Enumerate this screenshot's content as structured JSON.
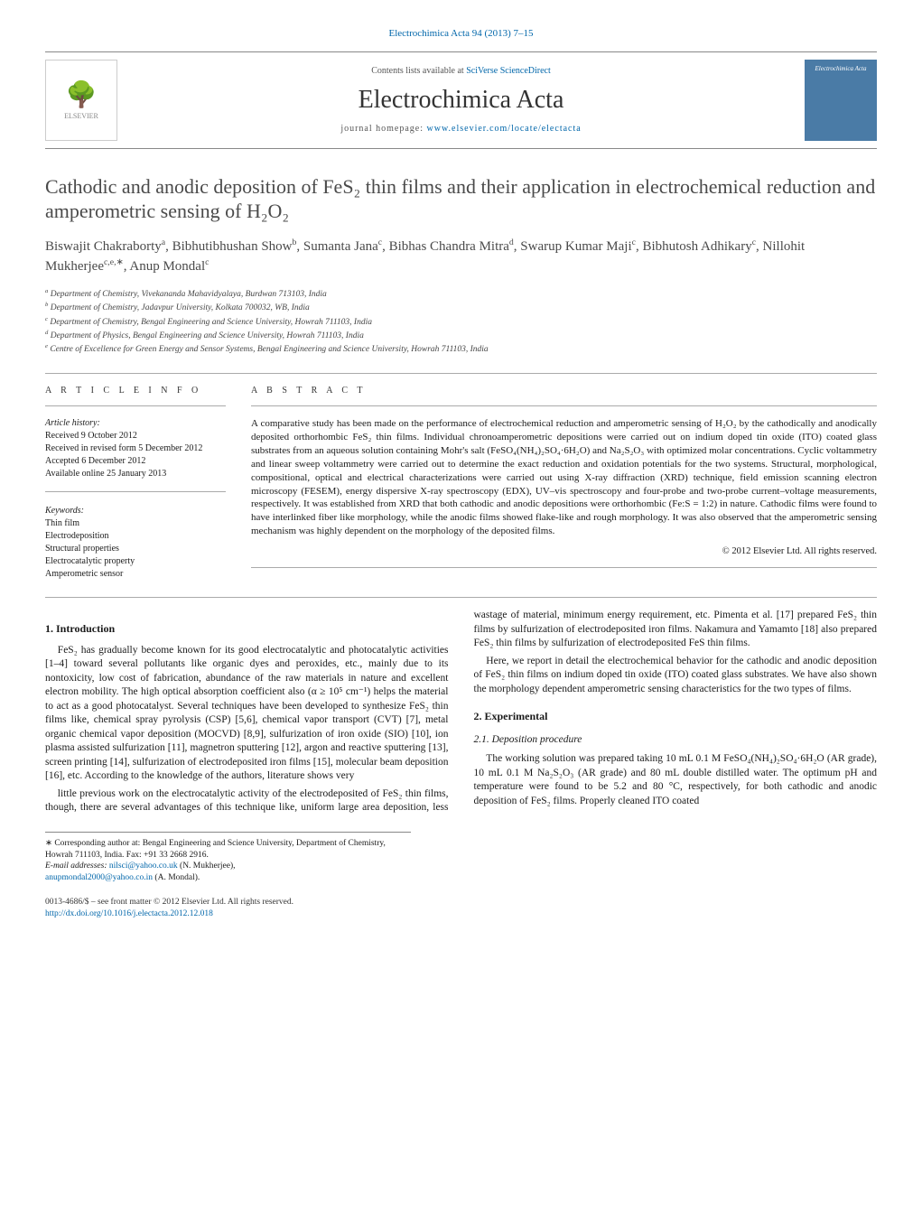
{
  "top_ref": "Electrochimica Acta 94 (2013) 7–15",
  "header": {
    "contents_prefix": "Contents lists available at ",
    "contents_link": "SciVerse ScienceDirect",
    "journal": "Electrochimica Acta",
    "homepage_prefix": "journal homepage: ",
    "homepage_link": "www.elsevier.com/locate/electacta",
    "publisher_logo": "ELSEVIER",
    "journal_logo_text": "Electrochimica Acta"
  },
  "title": "Cathodic and anodic deposition of FeS₂ thin films and their application in electrochemical reduction and amperometric sensing of H₂O₂",
  "authors_html": "Biswajit Chakraborty<sup>a</sup>, Bibhutibhushan Show<sup>b</sup>, Sumanta Jana<sup>c</sup>, Bibhas Chandra Mitra<sup>d</sup>, Swarup Kumar Maji<sup>c</sup>, Bibhutosh Adhikary<sup>c</sup>, Nillohit Mukherjee<sup>c,e,∗</sup>, Anup Mondal<sup>c</sup>",
  "affiliations": [
    "a Department of Chemistry, Vivekananda Mahavidyalaya, Burdwan 713103, India",
    "b Department of Chemistry, Jadavpur University, Kolkata 700032, WB, India",
    "c Department of Chemistry, Bengal Engineering and Science University, Howrah 711103, India",
    "d Department of Physics, Bengal Engineering and Science University, Howrah 711103, India",
    "e Centre of Excellence for Green Energy and Sensor Systems, Bengal Engineering and Science University, Howrah 711103, India"
  ],
  "info": {
    "heading": "a r t i c l e   i n f o",
    "history_label": "Article history:",
    "history": [
      "Received 9 October 2012",
      "Received in revised form 5 December 2012",
      "Accepted 6 December 2012",
      "Available online 25 January 2013"
    ],
    "keywords_label": "Keywords:",
    "keywords": [
      "Thin film",
      "Electrodeposition",
      "Structural properties",
      "Electrocatalytic property",
      "Amperometric sensor"
    ]
  },
  "abstract": {
    "heading": "a b s t r a c t",
    "text": "A comparative study has been made on the performance of electrochemical reduction and amperometric sensing of H₂O₂ by the cathodically and anodically deposited orthorhombic FeS₂ thin films. Individual chronoamperometric depositions were carried out on indium doped tin oxide (ITO) coated glass substrates from an aqueous solution containing Mohr's salt (FeSO₄(NH₄)₂SO₄·6H₂O) and Na₂S₂O₃ with optimized molar concentrations. Cyclic voltammetry and linear sweep voltammetry were carried out to determine the exact reduction and oxidation potentials for the two systems. Structural, morphological, compositional, optical and electrical characterizations were carried out using X-ray diffraction (XRD) technique, field emission scanning electron microscopy (FESEM), energy dispersive X-ray spectroscopy (EDX), UV–vis spectroscopy and four-probe and two-probe current–voltage measurements, respectively. It was established from XRD that both cathodic and anodic depositions were orthorhombic (Fe:S = 1:2) in nature. Cathodic films were found to have interlinked fiber like morphology, while the anodic films showed flake-like and rough morphology. It was also observed that the amperometric sensing mechanism was highly dependent on the morphology of the deposited films.",
    "copyright": "© 2012 Elsevier Ltd. All rights reserved."
  },
  "sections": {
    "intro_heading": "1.  Introduction",
    "intro_p1": "FeS₂ has gradually become known for its good electrocatalytic and photocatalytic activities [1–4] toward several pollutants like organic dyes and peroxides, etc., mainly due to its nontoxicity, low cost of fabrication, abundance of the raw materials in nature and excellent electron mobility. The high optical absorption coefficient also (α ≥ 10⁵ cm⁻¹) helps the material to act as a good photocatalyst. Several techniques have been developed to synthesize FeS₂ thin films like, chemical spray pyrolysis (CSP) [5,6], chemical vapor transport (CVT) [7], metal organic chemical vapor deposition (MOCVD) [8,9], sulfurization of iron oxide (SIO) [10], ion plasma assisted sulfurization [11], magnetron sputtering [12], argon and reactive sputtering [13], screen printing [14], sulfurization of electrodeposited iron films [15], molecular beam deposition [16], etc. According to the knowledge of the authors, literature shows very",
    "intro_p2": "little previous work on the electrocatalytic activity of the electrodeposited of FeS₂ thin films, though, there are several advantages of this technique like, uniform large area deposition, less wastage of material, minimum energy requirement, etc. Pimenta et al. [17] prepared FeS₂ thin films by sulfurization of electrodeposited iron films. Nakamura and Yamamto [18] also prepared FeS₂ thin films by sulfurization of electrodeposited FeS thin films.",
    "intro_p3": "Here, we report in detail the electrochemical behavior for the cathodic and anodic deposition of FeS₂ thin films on indium doped tin oxide (ITO) coated glass substrates. We have also shown the morphology dependent amperometric sensing characteristics for the two types of films.",
    "exp_heading": "2.  Experimental",
    "exp_sub": "2.1.  Deposition procedure",
    "exp_p1": "The working solution was prepared taking 10 mL 0.1 M FeSO₄(NH₄)₂SO₄·6H₂O (AR grade), 10 mL 0.1 M Na₂S₂O₃ (AR grade) and 80 mL double distilled water. The optimum pH and temperature were found to be 5.2 and 80 °C, respectively, for both cathodic and anodic deposition of FeS₂ films. Properly cleaned ITO coated"
  },
  "footnotes": {
    "corresponding": "∗ Corresponding author at: Bengal Engineering and Science University, Department of Chemistry, Howrah 711103, India. Fax: +91 33 2668 2916.",
    "email_label": "E-mail addresses: ",
    "email1": "nilsci@yahoo.co.uk",
    "email1_name": " (N. Mukherjee),",
    "email2": "anupmondal2000@yahoo.co.in",
    "email2_name": " (A. Mondal)."
  },
  "bottom": {
    "issn": "0013-4686/$ – see front matter © 2012 Elsevier Ltd. All rights reserved.",
    "doi_label": "http://dx.doi.org/",
    "doi": "10.1016/j.electacta.2012.12.018"
  },
  "colors": {
    "link": "#0066aa",
    "text": "#1a1a1a",
    "heading": "#4a4a4a",
    "rule": "#888888",
    "journal_logo_bg": "#4a7ba6"
  }
}
